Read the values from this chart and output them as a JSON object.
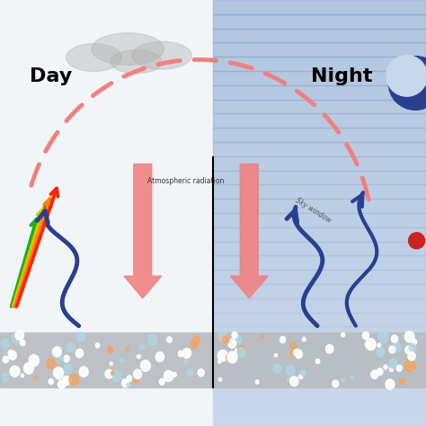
{
  "bg_day": "#f2f5f8",
  "bg_night": "#c8d8ec",
  "surface_color": "#b8bcc0",
  "day_label": "Day",
  "night_label": "Night",
  "atm_label": "Atmospheric radiation",
  "sky_window_label": "Sky window",
  "salmon_color": "#f08080",
  "blue_arrow_color": "#2a3f8f",
  "rainbow_colors": [
    "#22aa22",
    "#cccc00",
    "#ff8800",
    "#ff2200"
  ],
  "dot_white": "#ffffff",
  "dot_blue": "#add8e6",
  "dot_orange": "#f4a460",
  "cloud_color": "#b0b0b0",
  "moon_color": "#2a3f8f",
  "moon_bg": "#c8d8ec",
  "red_dot_color": "#cc2222"
}
